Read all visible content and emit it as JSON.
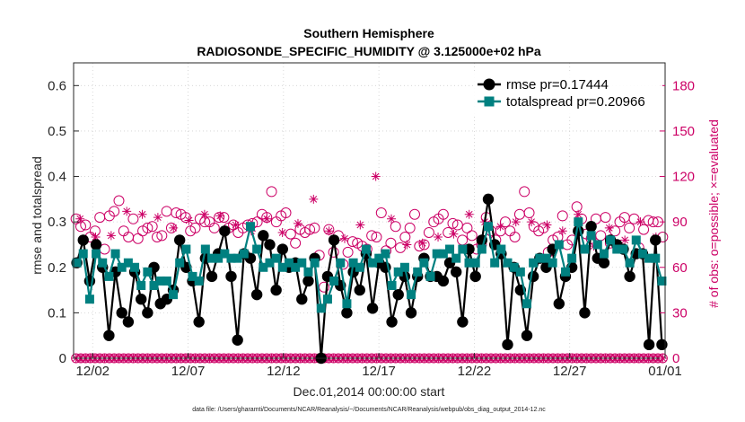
{
  "chart_data": {
    "type": "line",
    "title": "Southern Hemisphere",
    "subtitle": "RADIOSONDE_SPECIFIC_HUMIDITY @ 3.125000e+02 hPa",
    "xlabel": "Dec.01,2014 00:00:00 start",
    "ylabel": "rmse and totalspread",
    "ylabel_right": "# of obs: o=possible; ×=evaluated",
    "footnote": "data file: /Users/gharamti/Documents/NCAR/Reanalysis/~/Documents/NCAR/Reanalysis/webpub/obs_diag_output_2014-12.nc",
    "ylim": [
      0,
      0.65
    ],
    "ylim_right": [
      0,
      195
    ],
    "yticks": [
      "0",
      "0.1",
      "0.2",
      "0.3",
      "0.4",
      "0.5",
      "0.6"
    ],
    "yticks_right": [
      "0",
      "30",
      "60",
      "90",
      "120",
      "150",
      "180"
    ],
    "xlim": [
      0,
      31
    ],
    "xticks": [
      {
        "pos": 1,
        "label": "12/02"
      },
      {
        "pos": 6,
        "label": "12/07"
      },
      {
        "pos": 11,
        "label": "12/12"
      },
      {
        "pos": 16,
        "label": "12/17"
      },
      {
        "pos": 21,
        "label": "12/22"
      },
      {
        "pos": 26,
        "label": "12/27"
      },
      {
        "pos": 31,
        "label": "01/01"
      }
    ],
    "legend": {
      "placement": "top-right"
    },
    "series": [
      {
        "name": "rmse pr=0.17444",
        "color": "#000000",
        "marker": "circle",
        "values": [
          0.21,
          0.26,
          0.17,
          0.25,
          0.2,
          0.05,
          0.19,
          0.1,
          0.08,
          0.19,
          0.13,
          0.1,
          0.2,
          0.12,
          0.13,
          0.15,
          0.26,
          0.2,
          0.17,
          0.08,
          0.22,
          0.18,
          0.23,
          0.28,
          0.18,
          0.04,
          0.23,
          0.22,
          0.14,
          0.27,
          0.25,
          0.15,
          0.24,
          0.2,
          0.21,
          0.13,
          0.17,
          0.22,
          0.0,
          0.18,
          0.26,
          0.16,
          0.1,
          0.19,
          0.15,
          0.23,
          0.11,
          0.21,
          0.2,
          0.08,
          0.14,
          0.18,
          0.1,
          0.18,
          0.22,
          0.18,
          0.18,
          0.17,
          0.21,
          0.19,
          0.08,
          0.24,
          0.18,
          0.26,
          0.35,
          0.25,
          0.23,
          0.03,
          0.2,
          0.15,
          0.05,
          0.18,
          0.22,
          0.2,
          0.24,
          0.12,
          0.18,
          0.2,
          0.28,
          0.1,
          0.29,
          0.22,
          0.21,
          0.26,
          0.25,
          0.24,
          0.18,
          0.23,
          0.23,
          0.03,
          0.26,
          0.03
        ]
      },
      {
        "name": "totalspread pr=0.20966",
        "color": "#008080",
        "marker": "square",
        "values": [
          0.21,
          0.23,
          0.13,
          0.23,
          0.21,
          0.18,
          0.23,
          0.2,
          0.21,
          0.2,
          0.16,
          0.19,
          0.16,
          0.17,
          0.17,
          0.14,
          0.21,
          0.24,
          0.18,
          0.17,
          0.24,
          0.22,
          0.22,
          0.23,
          0.22,
          0.22,
          0.23,
          0.29,
          0.24,
          0.2,
          0.21,
          0.22,
          0.2,
          0.21,
          0.2,
          0.21,
          0.19,
          0.21,
          0.11,
          0.13,
          0.17,
          0.21,
          0.12,
          0.21,
          0.2,
          0.24,
          0.21,
          0.22,
          0.23,
          0.16,
          0.19,
          0.2,
          0.14,
          0.19,
          0.21,
          0.18,
          0.23,
          0.23,
          0.24,
          0.22,
          0.24,
          0.21,
          0.21,
          0.24,
          0.29,
          0.21,
          0.24,
          0.21,
          0.2,
          0.19,
          0.12,
          0.21,
          0.22,
          0.22,
          0.21,
          0.25,
          0.19,
          0.22,
          0.3,
          0.24,
          0.27,
          0.25,
          0.23,
          0.26,
          0.24,
          0.24,
          0.21,
          0.26,
          0.23,
          0.22,
          0.22,
          0.17
        ]
      }
    ],
    "obs_possible": [
      92,
      87,
      88,
      80,
      84,
      93,
      72,
      94,
      97,
      104,
      84,
      80,
      92,
      79,
      84,
      86,
      87,
      80,
      81,
      97,
      86,
      96,
      95,
      93,
      84,
      86,
      92,
      90,
      90,
      86,
      93,
      93,
      86,
      88,
      83,
      86,
      88,
      89,
      90,
      95,
      93,
      110,
      90,
      94,
      96,
      82,
      76,
      85,
      83,
      85,
      86,
      68,
      47,
      85,
      70,
      81,
      62,
      70,
      77,
      76,
      74,
      72,
      81,
      80,
      96,
      71,
      76,
      87,
      73,
      80,
      86,
      95,
      74,
      75,
      83,
      90,
      92,
      95,
      83,
      89,
      88,
      78,
      86,
      81,
      72,
      75,
      93,
      84,
      78,
      84,
      90,
      84,
      80,
      95,
      110,
      96,
      87,
      84,
      86,
      70,
      78,
      80,
      94,
      75,
      78,
      100,
      92,
      82,
      79,
      92,
      81,
      93,
      76,
      84,
      90,
      93,
      86,
      92,
      73,
      85,
      91,
      90,
      90,
      80
    ],
    "obs_evaluated": [
      92,
      80,
      81,
      97,
      95,
      93,
      86,
      91,
      95,
      94,
      88,
      84,
      92,
      83,
      89,
      105,
      84,
      79,
      88,
      120,
      92,
      75,
      76,
      80,
      82,
      95,
      90,
      87,
      90,
      90,
      88,
      84,
      95,
      74,
      86,
      78,
      90,
      80
    ]
  }
}
